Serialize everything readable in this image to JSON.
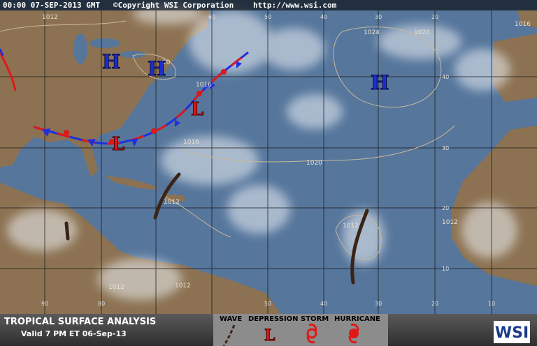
{
  "header": {
    "timestamp": "00:00 07-SEP-2013 GMT",
    "copyright": "©Copyright WSI Corporation",
    "url": "http://www.wsi.com"
  },
  "isobars": [
    "1012",
    "1024",
    "1020",
    "1016",
    "20",
    "1016",
    "1016",
    "1020",
    "1012",
    "1012",
    "1012",
    "1012",
    "1012"
  ],
  "highs": [
    "H",
    "H",
    "H"
  ],
  "lows": [
    "L",
    "L"
  ],
  "longitude_top": [
    "60",
    "50",
    "40",
    "30",
    "20"
  ],
  "longitude_bottom": [
    "90",
    "80",
    "50",
    "40",
    "30",
    "20",
    "10"
  ],
  "latitude_labels": [
    "40",
    "30",
    "20",
    "10"
  ],
  "footer": {
    "title": "TROPICAL SURFACE ANALYSIS",
    "valid": "Valid 7 PM ET 06-Sep-13",
    "legend": [
      "WAVE",
      "DEPRESSION",
      "STORM",
      "HURRICANE"
    ],
    "depression_symbol": "L",
    "logo": "WSI"
  }
}
